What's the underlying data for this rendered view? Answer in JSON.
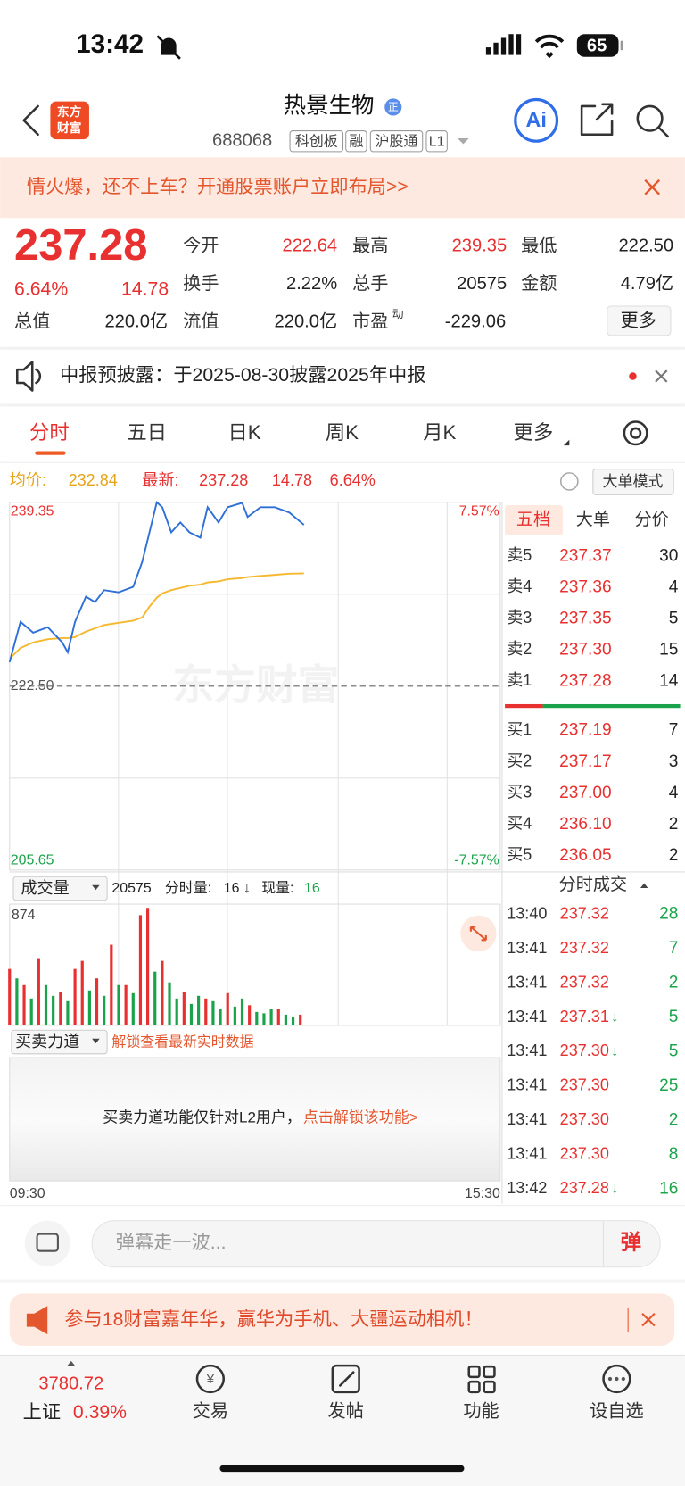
{
  "status": {
    "time": "13:42",
    "battery": "65"
  },
  "header": {
    "logo": [
      "东方",
      "财富"
    ],
    "title": "热景生物",
    "badge": "正",
    "code": "688068",
    "tags": [
      "科创板",
      "融",
      "沪股通",
      "L1"
    ],
    "ai": "Ai"
  },
  "promo_banner": "情火爆，还不上车？开通股票账户立即布局>>",
  "quote": {
    "price": "237.28",
    "change_pct": "6.64%",
    "change": "14.78",
    "fields": [
      {
        "label": "今开",
        "value": "222.64"
      },
      {
        "label": "最高",
        "value": "239.35"
      },
      {
        "label": "最低",
        "value": "222.50"
      },
      {
        "label": "换手",
        "value": "2.22%"
      },
      {
        "label": "总手",
        "value": "20575"
      },
      {
        "label": "金额",
        "value": "4.79亿"
      },
      {
        "label": "总值",
        "value": "220.0亿"
      },
      {
        "label": "流值",
        "value": "220.0亿"
      },
      {
        "label": "市盈",
        "sup": "动",
        "value": "-229.06"
      }
    ],
    "more": "更多"
  },
  "notice": "中报预披露：于2025-08-30披露2025年中报",
  "tabs": [
    "分时",
    "五日",
    "日K",
    "周K",
    "月K",
    "更多"
  ],
  "summary": {
    "avg_label": "均价:",
    "avg": "232.84",
    "last_label": "最新:",
    "last": "237.28",
    "change": "14.78",
    "change_pct": "6.64%",
    "mode": "大单模式"
  },
  "chart_data": [
    {
      "type": "line",
      "watermark": "东方财富",
      "x": [
        0,
        6,
        13,
        21,
        29,
        32,
        36,
        42,
        47,
        52,
        60,
        68,
        73,
        77,
        81,
        84,
        89,
        94,
        99,
        105,
        109,
        115,
        120,
        128,
        131,
        138,
        146,
        154,
        162
      ],
      "series": [
        {
          "color": "#2e6fd8",
          "values": [
            224.7,
            228.4,
            227.4,
            227.9,
            226.5,
            225.6,
            228.4,
            230.7,
            230.2,
            231.3,
            231.1,
            231.6,
            233.9,
            236.6,
            239.35,
            238.9,
            236.6,
            237.5,
            236.6,
            236.1,
            238.9,
            237.5,
            238.9,
            239.3,
            238.0,
            238.9,
            238.9,
            238.4,
            237.28
          ]
        },
        {
          "color": "#f5b82e",
          "values": [
            225.0,
            226.0,
            226.5,
            226.8,
            226.9,
            226.9,
            227.0,
            227.5,
            227.8,
            228.1,
            228.3,
            228.5,
            228.8,
            229.8,
            230.6,
            231.0,
            231.3,
            231.5,
            231.7,
            231.8,
            232.0,
            232.1,
            232.3,
            232.4,
            232.5,
            232.6,
            232.7,
            232.8,
            232.84
          ]
        }
      ],
      "xlim": [
        0,
        270
      ],
      "xticks": [
        {
          "value": 0,
          "label": "09:30"
        },
        {
          "value": 270,
          "label": "15:30"
        }
      ],
      "ylim": [
        205.65,
        239.35
      ],
      "yticks": [
        239.35,
        {
          "value": 222.5,
          "label": "222.50"
        },
        205.65
      ],
      "y2lim": [
        -7.57,
        7.57
      ],
      "y2ticks": [
        {
          "value": 7.57,
          "label": "7.57%"
        },
        {
          "value": -7.57,
          "label": "-7.57%"
        }
      ]
    },
    {
      "type": "bar",
      "selector": "成交量",
      "total": "20575",
      "interval_label": "分时量:",
      "interval": "16",
      "trend": "↓",
      "current_label": "现量:",
      "current": "16",
      "series": [
        {
          "color": "#e93030",
          "x": [
            0,
            8,
            16,
            28,
            36,
            40,
            48,
            56,
            64,
            72,
            76,
            84,
            96,
            108,
            120,
            132,
            148,
            160
          ],
          "values": [
            420,
            300,
            500,
            250,
            420,
            480,
            350,
            600,
            300,
            820,
            874,
            480,
            250,
            200,
            240,
            150,
            120,
            80
          ]
        },
        {
          "color": "#1aa34a",
          "x": [
            4,
            12,
            20,
            24,
            32,
            44,
            52,
            60,
            68,
            80,
            88,
            92,
            100,
            104,
            112,
            116,
            124,
            128,
            136,
            140,
            144,
            152,
            156
          ],
          "values": [
            350,
            200,
            300,
            220,
            180,
            260,
            220,
            300,
            240,
            400,
            320,
            200,
            160,
            220,
            180,
            120,
            140,
            200,
            100,
            90,
            120,
            80,
            60
          ]
        }
      ],
      "xlim": [
        0,
        270
      ],
      "ylim": [
        0,
        874
      ],
      "yticks": [
        874
      ]
    }
  ],
  "force": {
    "selector": "买卖力道",
    "unlock_hint": "解锁查看最新实时数据",
    "message": "买卖力道功能仅针对L2用户，",
    "action": "点击解锁该功能>"
  },
  "order_book": {
    "tabs": [
      "五档",
      "大单",
      "分价"
    ],
    "asks": [
      {
        "label": "卖5",
        "price": "237.37",
        "volume": "30"
      },
      {
        "label": "卖4",
        "price": "237.36",
        "volume": "4"
      },
      {
        "label": "卖3",
        "price": "237.35",
        "volume": "5"
      },
      {
        "label": "卖2",
        "price": "237.30",
        "volume": "15"
      },
      {
        "label": "卖1",
        "price": "237.28",
        "volume": "14"
      }
    ],
    "bids": [
      {
        "label": "买1",
        "price": "237.19",
        "volume": "7"
      },
      {
        "label": "买2",
        "price": "237.17",
        "volume": "3"
      },
      {
        "label": "买3",
        "price": "237.00",
        "volume": "4"
      },
      {
        "label": "买4",
        "price": "236.10",
        "volume": "2"
      },
      {
        "label": "买5",
        "price": "236.05",
        "volume": "2"
      }
    ]
  },
  "trades": {
    "title": "分时成交",
    "rows": [
      {
        "time": "13:40",
        "price": "237.32",
        "volume": "28"
      },
      {
        "time": "13:41",
        "price": "237.32",
        "volume": "7"
      },
      {
        "time": "13:41",
        "price": "237.32",
        "volume": "2"
      },
      {
        "time": "13:41",
        "price": "237.31",
        "arrow": "↓",
        "volume": "5"
      },
      {
        "time": "13:41",
        "price": "237.30",
        "arrow": "↓",
        "volume": "5"
      },
      {
        "time": "13:41",
        "price": "237.30",
        "volume": "25"
      },
      {
        "time": "13:41",
        "price": "237.30",
        "volume": "2"
      },
      {
        "time": "13:41",
        "price": "237.30",
        "volume": "8"
      },
      {
        "time": "13:42",
        "price": "237.28",
        "arrow": "↓",
        "volume": "16"
      }
    ]
  },
  "comment": {
    "placeholder": "弹幕走一波...",
    "button": "弹"
  },
  "ad": "参与18财富嘉年华，赢华为手机、大疆运动相机！",
  "nav": {
    "index_value": "3780.72",
    "index_name": "上证",
    "index_change": "0.39%",
    "items": [
      "交易",
      "发帖",
      "功能",
      "设自选"
    ]
  }
}
